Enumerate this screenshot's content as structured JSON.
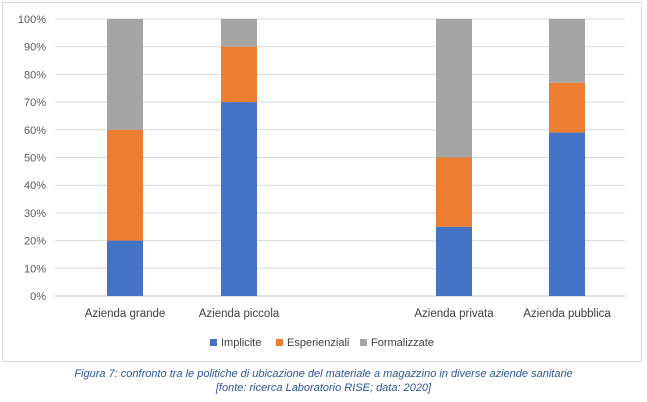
{
  "chart_data": {
    "type": "bar",
    "stacked": true,
    "categories": [
      "Azienda grande",
      "Azienda piccola",
      "Azienda privata",
      "Azienda pubblica"
    ],
    "series": [
      {
        "name": "Implicite",
        "color": "#4472c4",
        "values": [
          20,
          70,
          25,
          59
        ]
      },
      {
        "name": "Esperienziali",
        "color": "#ed7d31",
        "values": [
          40,
          20,
          25,
          18
        ]
      },
      {
        "name": "Formalizzate",
        "color": "#a5a5a5",
        "values": [
          40,
          10,
          50,
          23
        ]
      }
    ],
    "yticks": [
      "0%",
      "10%",
      "20%",
      "30%",
      "40%",
      "50%",
      "60%",
      "70%",
      "80%",
      "90%",
      "100%"
    ],
    "ylim": [
      0,
      100
    ],
    "grid": true,
    "legend_position": "bottom"
  },
  "caption": {
    "line1": "Figura 7: confronto tra le politiche di ubicazione del materiale a magazzino in diverse aziende sanitarie",
    "line2": "[fonte: ricerca Laboratorio RISE; data: 2020]"
  }
}
